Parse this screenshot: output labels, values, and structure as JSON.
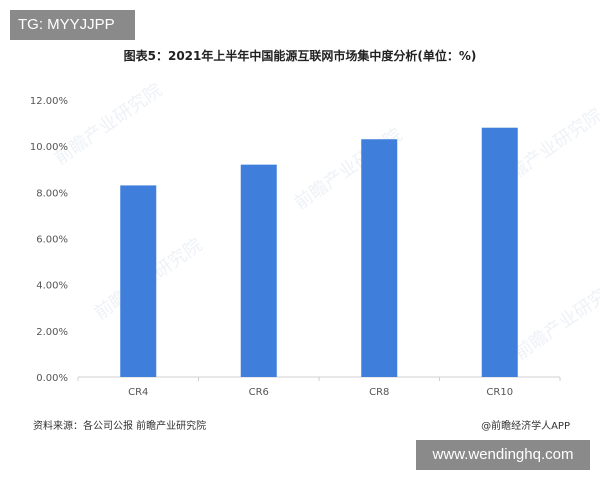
{
  "badges": {
    "top_left": "TG: MYYJJPP",
    "bottom_right": "www.wendinghq.com"
  },
  "footer": {
    "source": "资料来源：各公司公报 前瞻产业研究院",
    "credit": "@前瞻经济学人APP"
  },
  "colors": {
    "bar": "#3f7fdb",
    "axis": "#d0d0d0",
    "text": "#555555"
  },
  "chart_data": {
    "type": "bar",
    "title": "图表5：2021年上半年中国能源互联网市场集中度分析(单位：%)",
    "categories": [
      "CR4",
      "CR6",
      "CR8",
      "CR10"
    ],
    "values": [
      8.3,
      9.2,
      10.3,
      10.8
    ],
    "ylim": [
      0,
      12
    ],
    "yticks": [
      "0.00%",
      "2.00%",
      "4.00%",
      "6.00%",
      "8.00%",
      "10.00%",
      "12.00%"
    ],
    "grid": false
  }
}
